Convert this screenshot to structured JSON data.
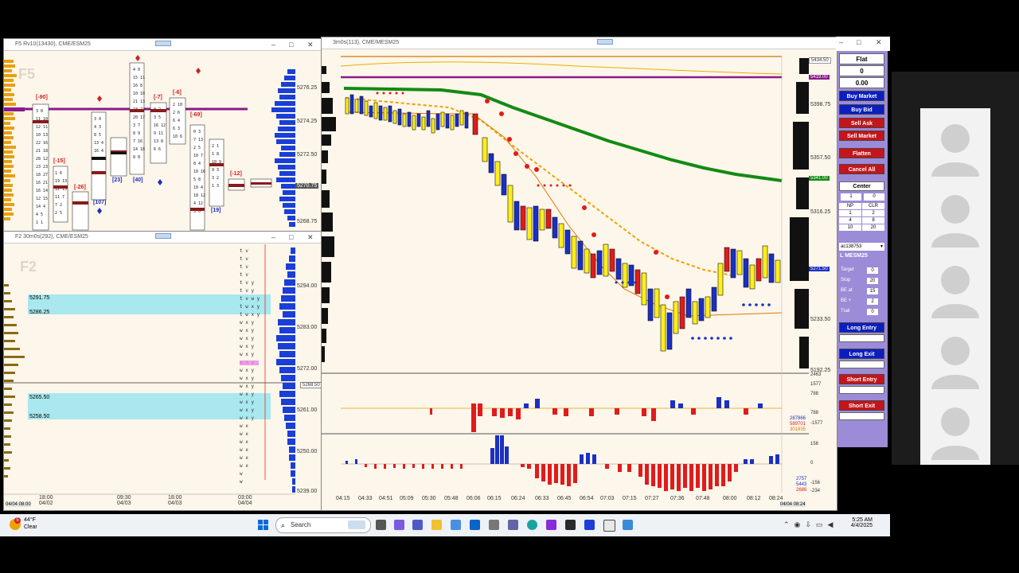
{
  "windows": {
    "f5": {
      "title": "F5 Rv10(13430), CME/ESM25",
      "watermark": "F5",
      "prices": [
        "5276.25",
        "5274.25",
        "5272.50",
        "5270.75",
        "5268.75"
      ],
      "labels": [
        "[-90]",
        "[-15]",
        "[-26]",
        "[-7]",
        "[-6]",
        "[-69]",
        "[-12]",
        "[23]",
        "[40]",
        "[107]",
        "[19]"
      ]
    },
    "f2": {
      "title": "F2 30m0s(292), CME/ESM25",
      "watermark": "F2",
      "zone_labels": [
        "5291.75",
        "5286.25",
        "5265.50",
        "5258.50"
      ],
      "prices": [
        "5294.00",
        "5283.00",
        "5272.00",
        "5261.00",
        "5250.00",
        "5239.00"
      ],
      "tag": "5268.50",
      "times": [
        {
          "t": "18:00",
          "d": "04/02"
        },
        {
          "t": "09:30",
          "d": "04/03"
        },
        {
          "t": "18:00",
          "d": "04/03"
        },
        {
          "t": "03:00",
          "d": "04/04"
        }
      ],
      "corner_label": "04/04 08:00"
    },
    "main": {
      "title": "3m0s(113), CME/MESM25",
      "price_labels": [
        "5398.75",
        "5357.50",
        "5316.25",
        "5233.50",
        "5192.25"
      ],
      "tags": {
        "top": "5434.50",
        "purple": "5419.00",
        "green": "5341.00",
        "current": "5271.50"
      },
      "delta_labels": [
        "2463",
        "1577",
        "788",
        "788",
        "-1577"
      ],
      "delta_tags": [
        "287866",
        "589701",
        "301835"
      ],
      "cvd_labels": [
        "156",
        "0",
        "-156",
        "-234"
      ],
      "cvd_tags": [
        "2757",
        "5443",
        "2686"
      ],
      "times": [
        "04:15",
        "04:33",
        "04:51",
        "05:09",
        "05:30",
        "05:48",
        "06:06",
        "06:15",
        "06:24",
        "06:33",
        "06:45",
        "06:54",
        "07:03",
        "07:15",
        "07:27",
        "07:36",
        "07:48",
        "08:00",
        "08:12",
        "08:24"
      ],
      "corner_label": "04/04 08:24"
    }
  },
  "order_panel": {
    "position": "Flat",
    "qty": "0",
    "pnl": "0.00",
    "buy_market": "Buy Market",
    "buy_bid": "Buy Bid",
    "sell_ask": "Sell Ask",
    "sell_market": "Sell Market",
    "flatten": "Flatten",
    "cancel_all": "Cancel All",
    "center": "Center",
    "qty_input": "1",
    "qty_right": "0",
    "grid": [
      "NP",
      "CLR",
      "1",
      "2",
      "4",
      "8",
      "10",
      "20"
    ],
    "account": "ac138753",
    "instrument": "L MESM25",
    "rows": [
      {
        "label": "Target",
        "value": "0"
      },
      {
        "label": "Stop",
        "value": "20"
      },
      {
        "label": "BE at",
        "value": "15"
      },
      {
        "label": "BE +",
        "value": "2"
      },
      {
        "label": "Trail",
        "value": "0"
      }
    ],
    "long_entry": "Long Entry",
    "long_exit": "Long Exit",
    "short_entry": "Short Entry",
    "short_exit": "Short Exit"
  },
  "taskbar": {
    "weather_temp": "44°F",
    "weather_desc": "Clear",
    "search_placeholder": "Search",
    "time": "5:25 AM",
    "date": "4/4/2025",
    "weather_badge": "5"
  },
  "colors": {
    "buy_blue": "#0b1fbf",
    "sell_red": "#c4151b",
    "panel_purple": "#9c8bd6",
    "zone_cyan": "#a8e8ee",
    "up_bar_yellow": "#ffef1a",
    "ma_green": "#138a13"
  }
}
